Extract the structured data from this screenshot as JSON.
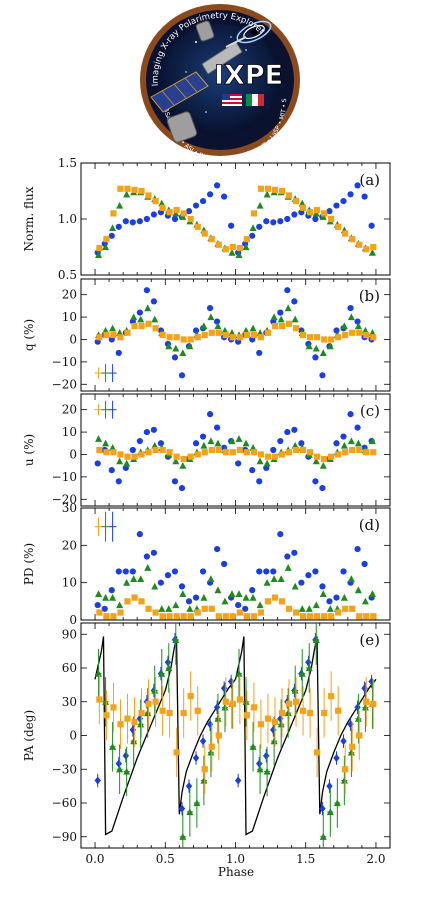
{
  "logo": {
    "mission": "IXPE",
    "arc_top": "Imaging X-ray Polarimetry Explorer",
    "arc_right": "Ball • ASI • INAF • Stanford • Sapienza • McGill",
    "arc_bottom": "NASA • MSFC • ASI • INAF • INFN • Ball • OHB • LaSP • MIT • Stanford • Roma Tre"
  },
  "colors": {
    "blue": "#1a3fe0",
    "green": "#1f8a1f",
    "orange": "#f3a21a",
    "model": "#000000"
  },
  "xlabel": "Phase",
  "x_ticks": [
    "0.0",
    "0.5",
    "1.0",
    "1.5",
    "2.0"
  ],
  "chart_data": [
    {
      "id": "a",
      "type": "scatter",
      "panel_label": "(a)",
      "ylabel": "Norm. flux",
      "ylim": [
        0.5,
        1.5
      ],
      "yticks": [
        "0.5",
        "1.0",
        "1.5"
      ],
      "series": [
        {
          "color": "blue",
          "marker": "circle",
          "x": [
            0.025,
            0.075,
            0.125,
            0.175,
            0.225,
            0.275,
            0.325,
            0.375,
            0.425,
            0.475,
            0.525,
            0.575,
            0.625,
            0.675,
            0.725,
            0.775,
            0.825,
            0.875,
            0.925,
            0.975
          ],
          "y": [
            0.7,
            0.78,
            0.85,
            0.93,
            0.98,
            0.97,
            0.98,
            1.0,
            1.04,
            1.06,
            1.03,
            1.0,
            1.02,
            1.07,
            1.12,
            1.16,
            1.22,
            1.3,
            1.2,
            0.94
          ]
        },
        {
          "color": "green",
          "marker": "triangle",
          "x": [
            0.025,
            0.075,
            0.125,
            0.175,
            0.225,
            0.275,
            0.325,
            0.375,
            0.425,
            0.475,
            0.525,
            0.575,
            0.625,
            0.675,
            0.725,
            0.775,
            0.825,
            0.875,
            0.925,
            0.975
          ],
          "y": [
            0.68,
            0.75,
            0.92,
            1.12,
            1.22,
            1.24,
            1.24,
            1.2,
            1.18,
            1.14,
            1.08,
            1.05,
            1.02,
            0.98,
            0.95,
            0.9,
            0.83,
            0.78,
            0.74,
            0.7
          ]
        },
        {
          "color": "orange",
          "marker": "square",
          "x": [
            0.025,
            0.075,
            0.125,
            0.175,
            0.225,
            0.275,
            0.325,
            0.375,
            0.425,
            0.475,
            0.525,
            0.575,
            0.625,
            0.675,
            0.725,
            0.775,
            0.825,
            0.875,
            0.925,
            0.975
          ],
          "y": [
            0.74,
            0.82,
            1.05,
            1.27,
            1.27,
            1.26,
            1.25,
            1.21,
            1.16,
            1.1,
            1.06,
            1.08,
            1.05,
            1.0,
            0.93,
            0.87,
            0.82,
            0.77,
            0.73,
            0.75
          ]
        }
      ]
    },
    {
      "id": "b",
      "type": "scatter",
      "panel_label": "(b)",
      "ylabel": "q (%)",
      "ylim": [
        -23,
        27
      ],
      "yticks": [
        "−20",
        "−10",
        "0",
        "10",
        "20"
      ],
      "series": [
        {
          "color": "blue",
          "marker": "circle",
          "x": [
            0.025,
            0.075,
            0.125,
            0.175,
            0.225,
            0.275,
            0.325,
            0.375,
            0.425,
            0.475,
            0.525,
            0.575,
            0.625,
            0.675,
            0.725,
            0.775,
            0.825,
            0.875,
            0.925,
            0.975
          ],
          "y": [
            -1,
            2,
            0,
            -6,
            3,
            8,
            12,
            22,
            17,
            4,
            -2,
            -8,
            -16,
            -3,
            4,
            5,
            14,
            8,
            1,
            0
          ]
        },
        {
          "color": "green",
          "marker": "triangle",
          "x": [
            0.025,
            0.075,
            0.125,
            0.175,
            0.225,
            0.275,
            0.325,
            0.375,
            0.425,
            0.475,
            0.525,
            0.575,
            0.625,
            0.675,
            0.725,
            0.775,
            0.825,
            0.875,
            0.925,
            0.975
          ],
          "y": [
            2,
            4,
            5,
            3,
            4,
            10,
            9,
            14,
            9,
            3,
            -3,
            -4,
            -6,
            -3,
            2,
            6,
            10,
            6,
            4,
            3
          ]
        },
        {
          "color": "orange",
          "marker": "square",
          "x": [
            0.025,
            0.075,
            0.125,
            0.175,
            0.225,
            0.275,
            0.325,
            0.375,
            0.425,
            0.475,
            0.525,
            0.575,
            0.625,
            0.675,
            0.725,
            0.775,
            0.825,
            0.875,
            0.925,
            0.975
          ],
          "y": [
            1,
            2,
            2,
            1,
            3,
            6,
            6,
            7,
            5,
            2,
            1,
            1,
            0,
            0,
            1,
            2,
            3,
            3,
            2,
            1
          ]
        }
      ],
      "error_bars": {
        "x": [
          0.025,
          0.075,
          0.125
        ],
        "y": -15,
        "half": [
          2.5,
          4,
          4
        ],
        "colors": [
          "orange",
          "green",
          "blue"
        ]
      }
    },
    {
      "id": "c",
      "type": "scatter",
      "panel_label": "(c)",
      "ylabel": "u (%)",
      "ylim": [
        -23,
        27
      ],
      "yticks": [
        "−20",
        "−10",
        "0",
        "10",
        "20"
      ],
      "series": [
        {
          "color": "blue",
          "marker": "circle",
          "x": [
            0.025,
            0.075,
            0.125,
            0.175,
            0.225,
            0.275,
            0.325,
            0.375,
            0.425,
            0.475,
            0.525,
            0.575,
            0.625,
            0.675,
            0.725,
            0.775,
            0.825,
            0.875,
            0.925,
            0.975
          ],
          "y": [
            -4,
            2,
            -7,
            -12,
            -6,
            2,
            6,
            10,
            11,
            5,
            -1,
            -12,
            -15,
            -2,
            5,
            8,
            18,
            12,
            3,
            6
          ]
        },
        {
          "color": "green",
          "marker": "triangle",
          "x": [
            0.025,
            0.075,
            0.125,
            0.175,
            0.225,
            0.275,
            0.325,
            0.375,
            0.425,
            0.475,
            0.525,
            0.575,
            0.625,
            0.675,
            0.725,
            0.775,
            0.825,
            0.875,
            0.925,
            0.975
          ],
          "y": [
            7,
            5,
            3,
            -3,
            -4,
            -2,
            1,
            2,
            4,
            3,
            0,
            -3,
            -5,
            -2,
            1,
            4,
            6,
            5,
            2,
            6
          ]
        },
        {
          "color": "orange",
          "marker": "square",
          "x": [
            0.025,
            0.075,
            0.125,
            0.175,
            0.225,
            0.275,
            0.325,
            0.375,
            0.425,
            0.475,
            0.525,
            0.575,
            0.625,
            0.675,
            0.725,
            0.775,
            0.825,
            0.875,
            0.925,
            0.975
          ],
          "y": [
            2,
            1,
            1,
            0,
            -1,
            -1,
            0,
            1,
            2,
            2,
            1,
            -1,
            -2,
            -1,
            0,
            1,
            2,
            2,
            1,
            1
          ]
        }
      ],
      "error_bars": {
        "x": [
          0.025,
          0.075,
          0.125
        ],
        "y": 20,
        "half": [
          2.5,
          4,
          4
        ],
        "colors": [
          "orange",
          "green",
          "blue"
        ]
      }
    },
    {
      "id": "d",
      "type": "scatter",
      "panel_label": "(d)",
      "ylabel": "PD (%)",
      "ylim": [
        0,
        30
      ],
      "yticks": [
        "0",
        "10",
        "20",
        "30"
      ],
      "series": [
        {
          "color": "blue",
          "marker": "circle",
          "x": [
            0.025,
            0.075,
            0.125,
            0.175,
            0.225,
            0.275,
            0.325,
            0.375,
            0.425,
            0.475,
            0.525,
            0.575,
            0.625,
            0.675,
            0.725,
            0.775,
            0.825,
            0.875,
            0.925,
            0.975
          ],
          "y": [
            4,
            3,
            8,
            13,
            13,
            13,
            23,
            17,
            18,
            10,
            12,
            13,
            9,
            5,
            6,
            13,
            10,
            19,
            15,
            6
          ]
        },
        {
          "color": "green",
          "marker": "triangle",
          "x": [
            0.025,
            0.075,
            0.125,
            0.175,
            0.225,
            0.275,
            0.325,
            0.375,
            0.425,
            0.475,
            0.525,
            0.575,
            0.625,
            0.675,
            0.725,
            0.775,
            0.825,
            0.875,
            0.925,
            0.975
          ],
          "y": [
            7,
            6,
            6,
            4,
            10,
            11,
            11,
            14,
            9,
            3,
            3,
            4,
            7,
            3,
            3,
            6,
            11,
            8,
            5,
            7
          ]
        },
        {
          "color": "orange",
          "marker": "square",
          "x": [
            0.025,
            0.075,
            0.125,
            0.175,
            0.225,
            0.275,
            0.325,
            0.375,
            0.425,
            0.475,
            0.525,
            0.575,
            0.625,
            0.675,
            0.725,
            0.775,
            0.825,
            0.875,
            0.925,
            0.975
          ],
          "y": [
            2,
            1,
            1,
            2,
            5,
            6,
            5,
            3,
            2,
            1,
            1,
            1,
            1,
            1,
            2,
            3,
            3,
            1,
            1,
            1
          ]
        }
      ],
      "error_bars": {
        "x": [
          0.025,
          0.075,
          0.125
        ],
        "y": 25,
        "half": [
          2.5,
          4,
          4
        ],
        "colors": [
          "orange",
          "green",
          "blue"
        ]
      }
    },
    {
      "id": "e",
      "type": "scatter",
      "panel_label": "(e)",
      "ylabel": "PA (deg)",
      "ylim": [
        -100,
        100
      ],
      "yticks": [
        "−90",
        "−60",
        "−30",
        "0",
        "30",
        "60",
        "90"
      ],
      "series": [
        {
          "color": "blue",
          "marker": "diamond",
          "x": [
            0.025,
            0.175,
            0.225,
            0.275,
            0.325,
            0.375,
            0.425,
            0.475,
            0.525,
            0.575,
            0.625,
            0.675,
            0.725,
            0.775,
            0.825,
            0.875,
            0.925,
            0.975
          ],
          "y": [
            -40,
            -25,
            -18,
            5,
            15,
            30,
            40,
            55,
            65,
            85,
            -65,
            -45,
            -20,
            -5,
            10,
            25,
            42,
            48
          ]
        },
        {
          "color": "green",
          "marker": "triangle",
          "x": [
            0.025,
            0.075,
            0.125,
            0.175,
            0.225,
            0.275,
            0.325,
            0.375,
            0.425,
            0.475,
            0.525,
            0.575,
            0.625,
            0.675,
            0.725,
            0.775,
            0.825,
            0.875,
            0.925,
            0.975
          ],
          "y": [
            55,
            30,
            -10,
            -30,
            -32,
            -5,
            10,
            20,
            40,
            55,
            60,
            85,
            -90,
            -68,
            -60,
            -40,
            -15,
            15,
            25,
            28
          ]
        },
        {
          "color": "orange",
          "marker": "square",
          "x": [
            0.025,
            0.075,
            0.125,
            0.175,
            0.225,
            0.275,
            0.325,
            0.375,
            0.425,
            0.475,
            0.525,
            0.575,
            0.625,
            0.675,
            0.725,
            0.775,
            0.825,
            0.875,
            0.925,
            0.975
          ],
          "y": [
            32,
            18,
            25,
            10,
            15,
            12,
            20,
            28,
            30,
            22,
            20,
            -15,
            20,
            35,
            22,
            -30,
            -10,
            0,
            30,
            28
          ]
        }
      ],
      "model": {
        "x": [
          0.0,
          0.045,
          0.06,
          0.075,
          0.12,
          0.2,
          0.3,
          0.4,
          0.5,
          0.54,
          0.56,
          0.58,
          0.6,
          0.62,
          0.65,
          0.7,
          0.75,
          0.8,
          0.85,
          0.9,
          0.95,
          1.0
        ],
        "y": [
          50,
          75,
          88,
          -88,
          -85,
          -55,
          -20,
          10,
          40,
          60,
          75,
          88,
          -70,
          -50,
          -32,
          -15,
          0,
          12,
          22,
          32,
          42,
          50
        ]
      }
    }
  ]
}
